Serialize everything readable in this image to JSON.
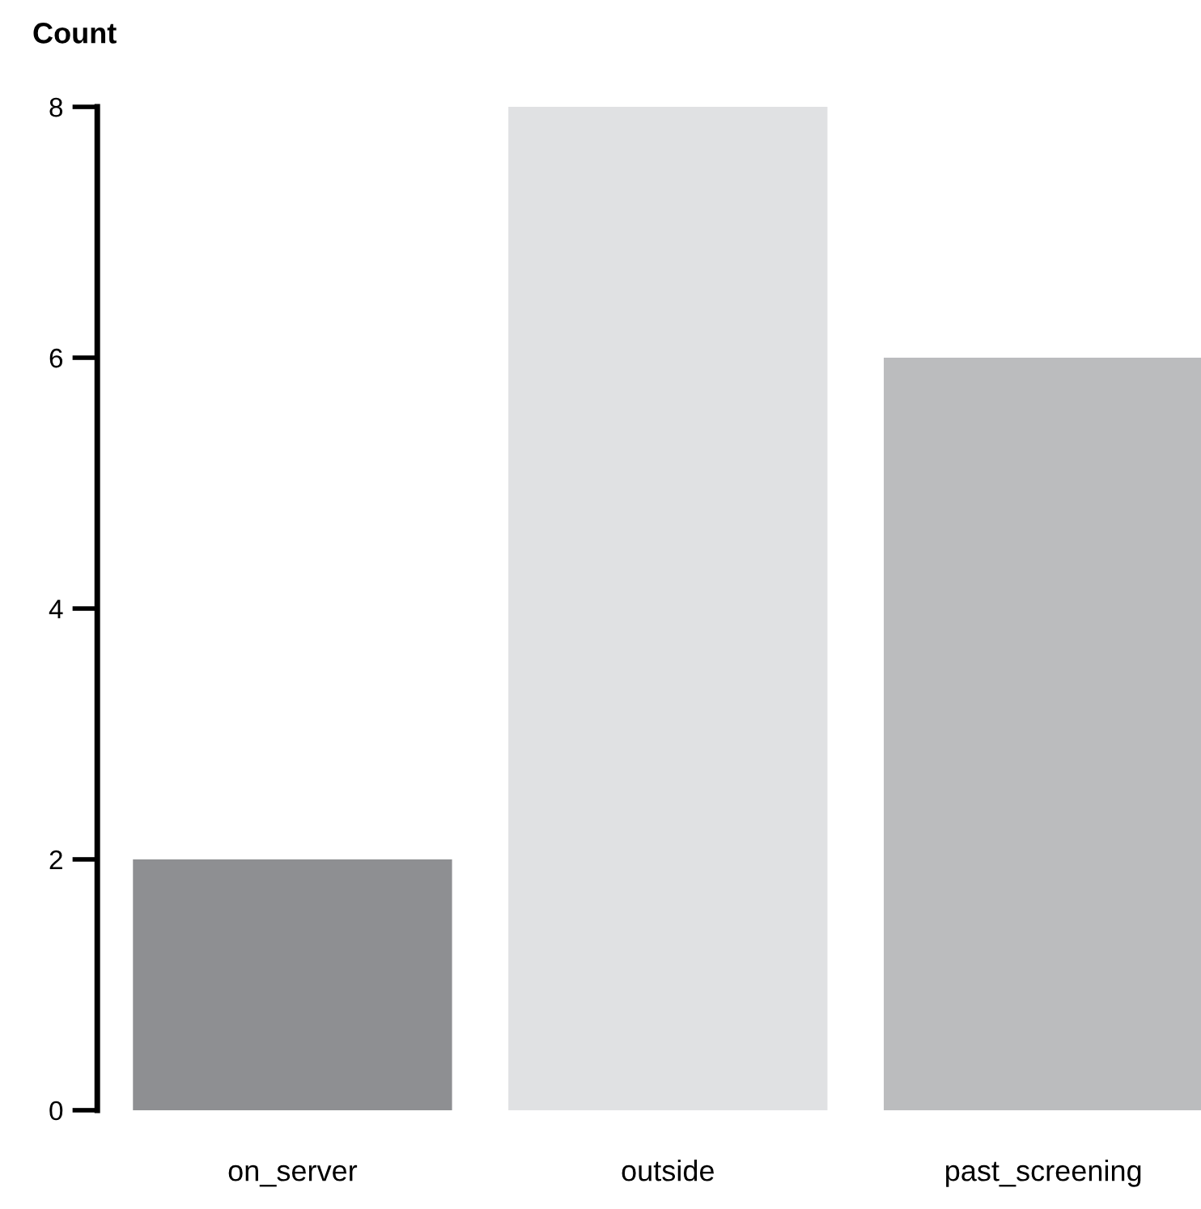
{
  "chart_data": {
    "type": "bar",
    "ylabel": "Count",
    "categories": [
      "on_server",
      "outside",
      "past_screening"
    ],
    "values": [
      2,
      8,
      6
    ],
    "colors": [
      "#8e8f92",
      "#e0e1e3",
      "#bbbcbe"
    ],
    "ylim": [
      0,
      8
    ],
    "yticks": [
      0,
      2,
      4,
      6,
      8
    ],
    "grid": false,
    "legend": false
  }
}
